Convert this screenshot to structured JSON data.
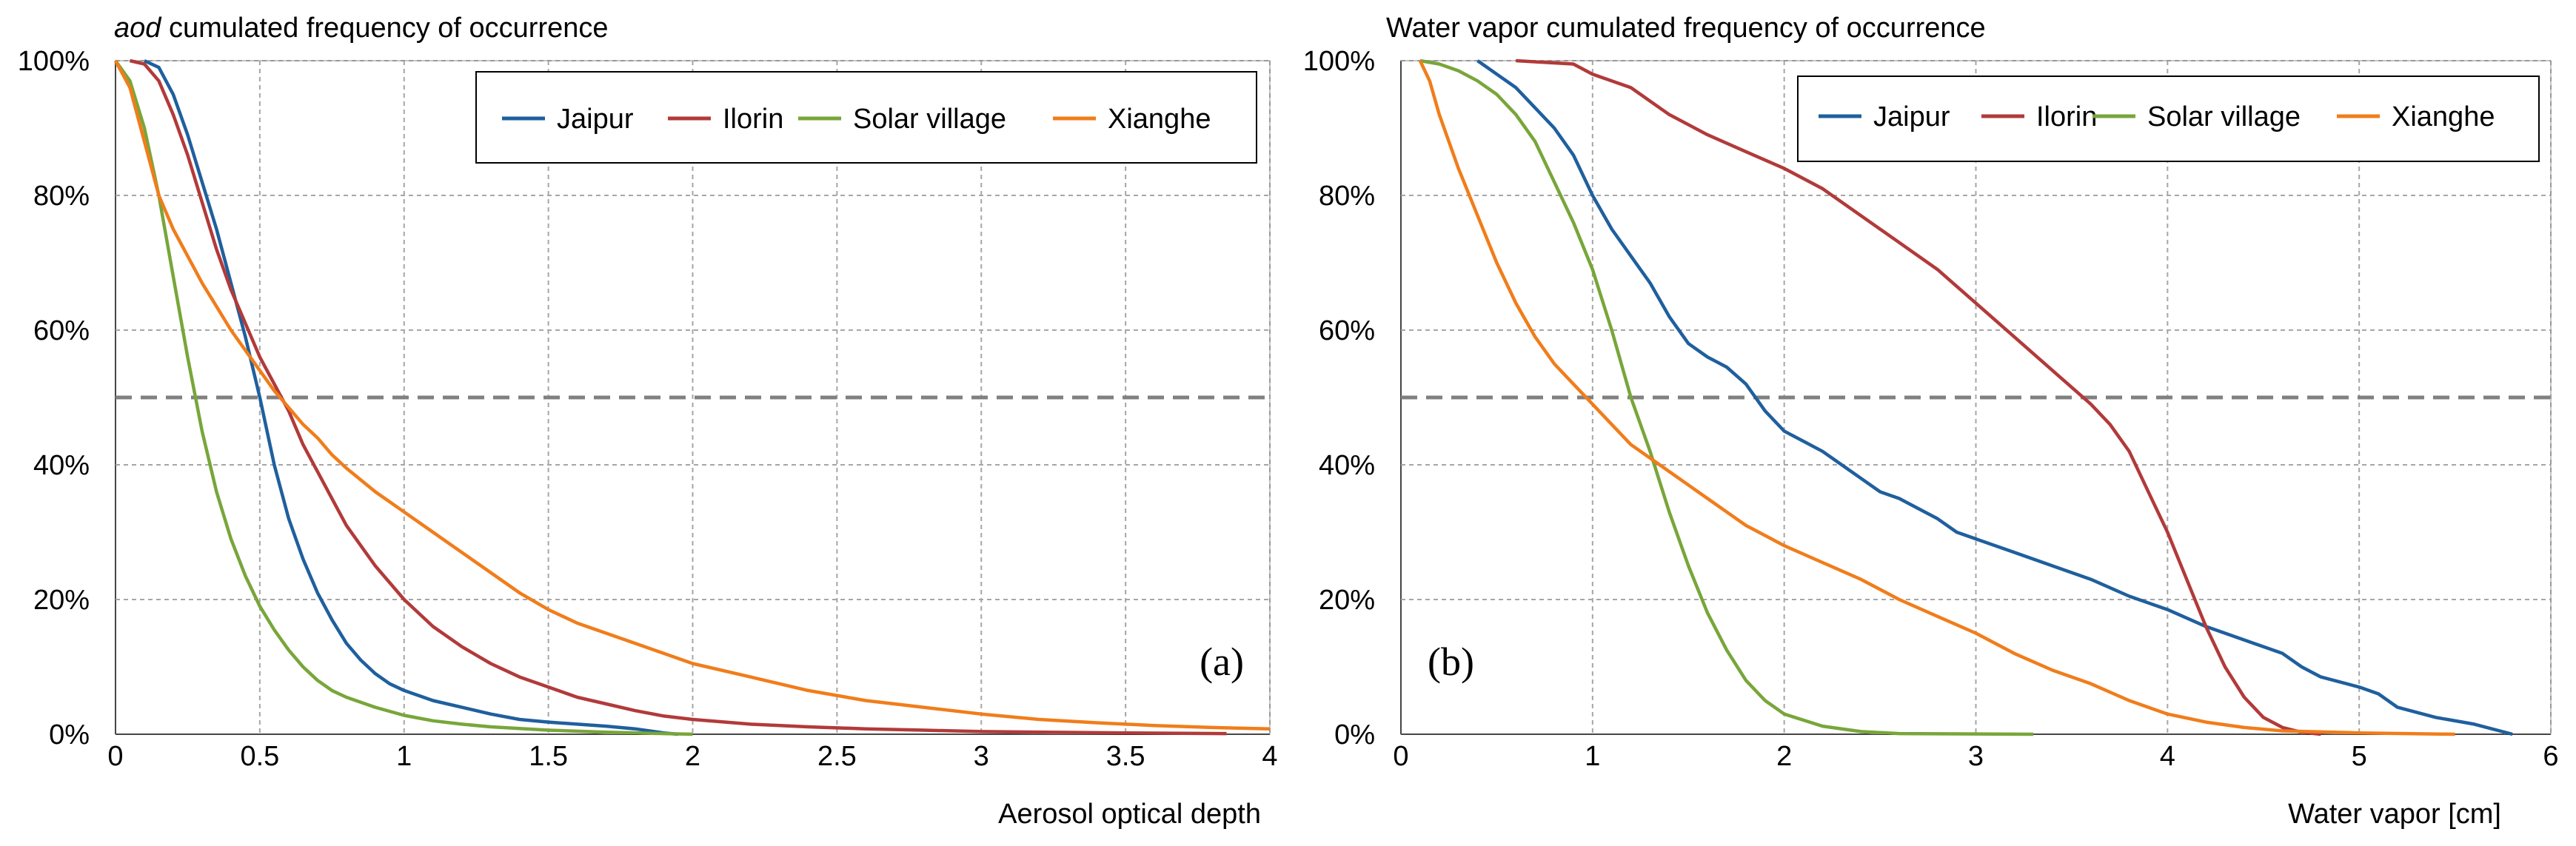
{
  "chart_data": [
    {
      "type": "line",
      "title_italic": "aod",
      "title_rest": " cumulated frequency of occurrence",
      "xlabel": "Aerosol optical depth",
      "ylabel": "",
      "xlim": [
        0,
        4
      ],
      "ylim": [
        0,
        100
      ],
      "x_ticks": [
        0,
        0.5,
        1,
        1.5,
        2,
        2.5,
        3,
        3.5,
        4
      ],
      "x_tick_labels": [
        "0",
        "0.5",
        "1",
        "1.5",
        "2",
        "2.5",
        "3",
        "3.5",
        "4"
      ],
      "y_ticks": [
        0,
        20,
        40,
        60,
        80,
        100
      ],
      "y_tick_labels": [
        "0%",
        "20%",
        "40%",
        "60%",
        "80%",
        "100%"
      ],
      "grid": true,
      "reference_line_y": 50,
      "legend_position": "top-right",
      "panel_label": "(a)",
      "series": [
        {
          "name": "Jaipur",
          "color": "#1f5f9e",
          "points": [
            [
              0.1,
              100
            ],
            [
              0.15,
              99
            ],
            [
              0.2,
              95
            ],
            [
              0.25,
              89
            ],
            [
              0.3,
              82
            ],
            [
              0.35,
              75
            ],
            [
              0.4,
              67
            ],
            [
              0.45,
              59
            ],
            [
              0.5,
              50
            ],
            [
              0.55,
              40
            ],
            [
              0.6,
              32
            ],
            [
              0.65,
              26
            ],
            [
              0.7,
              21
            ],
            [
              0.75,
              17
            ],
            [
              0.8,
              13.5
            ],
            [
              0.85,
              11
            ],
            [
              0.9,
              9
            ],
            [
              0.95,
              7.5
            ],
            [
              1.0,
              6.5
            ],
            [
              1.1,
              5
            ],
            [
              1.2,
              4
            ],
            [
              1.3,
              3
            ],
            [
              1.4,
              2.2
            ],
            [
              1.5,
              1.8
            ],
            [
              1.6,
              1.5
            ],
            [
              1.7,
              1.2
            ],
            [
              1.8,
              0.8
            ],
            [
              1.9,
              0.2
            ],
            [
              1.95,
              0
            ]
          ]
        },
        {
          "name": "Ilorin",
          "color": "#b23a3a",
          "points": [
            [
              0.05,
              100
            ],
            [
              0.1,
              99.5
            ],
            [
              0.15,
              97
            ],
            [
              0.2,
              92
            ],
            [
              0.25,
              86
            ],
            [
              0.3,
              79
            ],
            [
              0.35,
              72
            ],
            [
              0.4,
              66
            ],
            [
              0.45,
              61
            ],
            [
              0.5,
              56
            ],
            [
              0.55,
              52
            ],
            [
              0.6,
              48
            ],
            [
              0.65,
              43
            ],
            [
              0.7,
              39
            ],
            [
              0.75,
              35
            ],
            [
              0.8,
              31
            ],
            [
              0.9,
              25
            ],
            [
              1.0,
              20
            ],
            [
              1.1,
              16
            ],
            [
              1.2,
              13
            ],
            [
              1.3,
              10.5
            ],
            [
              1.4,
              8.5
            ],
            [
              1.5,
              7
            ],
            [
              1.6,
              5.5
            ],
            [
              1.7,
              4.5
            ],
            [
              1.8,
              3.5
            ],
            [
              1.9,
              2.7
            ],
            [
              2.0,
              2.2
            ],
            [
              2.2,
              1.5
            ],
            [
              2.4,
              1.1
            ],
            [
              2.6,
              0.8
            ],
            [
              2.8,
              0.6
            ],
            [
              3.0,
              0.4
            ],
            [
              3.5,
              0.2
            ],
            [
              3.85,
              0.1
            ]
          ]
        },
        {
          "name": "Solar village",
          "color": "#78a63a",
          "points": [
            [
              0.0,
              100
            ],
            [
              0.05,
              97
            ],
            [
              0.1,
              90
            ],
            [
              0.15,
              80
            ],
            [
              0.2,
              68
            ],
            [
              0.25,
              56
            ],
            [
              0.3,
              45
            ],
            [
              0.35,
              36
            ],
            [
              0.4,
              29
            ],
            [
              0.45,
              23.5
            ],
            [
              0.5,
              19
            ],
            [
              0.55,
              15.5
            ],
            [
              0.6,
              12.5
            ],
            [
              0.65,
              10
            ],
            [
              0.7,
              8
            ],
            [
              0.75,
              6.5
            ],
            [
              0.8,
              5.5
            ],
            [
              0.9,
              4
            ],
            [
              1.0,
              2.8
            ],
            [
              1.1,
              2
            ],
            [
              1.2,
              1.5
            ],
            [
              1.3,
              1.1
            ],
            [
              1.5,
              0.6
            ],
            [
              1.7,
              0.3
            ],
            [
              1.9,
              0.1
            ],
            [
              2.0,
              0
            ]
          ]
        },
        {
          "name": "Xianghe",
          "color": "#f07d1b",
          "points": [
            [
              0.0,
              100
            ],
            [
              0.05,
              96
            ],
            [
              0.1,
              88
            ],
            [
              0.15,
              80
            ],
            [
              0.2,
              75
            ],
            [
              0.25,
              71
            ],
            [
              0.3,
              67
            ],
            [
              0.35,
              63.5
            ],
            [
              0.4,
              60
            ],
            [
              0.45,
              57
            ],
            [
              0.5,
              54
            ],
            [
              0.55,
              51
            ],
            [
              0.6,
              48.5
            ],
            [
              0.65,
              46
            ],
            [
              0.7,
              44
            ],
            [
              0.75,
              41.5
            ],
            [
              0.8,
              39.5
            ],
            [
              0.9,
              36
            ],
            [
              1.0,
              33
            ],
            [
              1.1,
              30
            ],
            [
              1.2,
              27
            ],
            [
              1.3,
              24
            ],
            [
              1.4,
              21
            ],
            [
              1.5,
              18.5
            ],
            [
              1.6,
              16.5
            ],
            [
              1.7,
              15
            ],
            [
              1.8,
              13.5
            ],
            [
              1.9,
              12
            ],
            [
              2.0,
              10.5
            ],
            [
              2.2,
              8.5
            ],
            [
              2.4,
              6.5
            ],
            [
              2.6,
              5
            ],
            [
              2.8,
              4
            ],
            [
              3.0,
              3
            ],
            [
              3.2,
              2.2
            ],
            [
              3.4,
              1.7
            ],
            [
              3.6,
              1.3
            ],
            [
              3.8,
              1
            ],
            [
              4.0,
              0.8
            ]
          ]
        }
      ]
    },
    {
      "type": "line",
      "title_italic": "",
      "title_rest": "Water vapor cumulated frequency of occurrence",
      "xlabel": "Water vapor [cm]",
      "ylabel": "",
      "xlim": [
        0,
        6
      ],
      "ylim": [
        0,
        100
      ],
      "x_ticks": [
        0,
        1,
        2,
        3,
        4,
        5,
        6
      ],
      "x_tick_labels": [
        "0",
        "1",
        "2",
        "3",
        "4",
        "5",
        "6"
      ],
      "y_ticks": [
        0,
        20,
        40,
        60,
        80,
        100
      ],
      "y_tick_labels": [
        "0%",
        "20%",
        "40%",
        "60%",
        "80%",
        "100%"
      ],
      "grid": true,
      "reference_line_y": 50,
      "legend_position": "top-right",
      "panel_label": "(b)",
      "series": [
        {
          "name": "Jaipur",
          "color": "#1f5f9e",
          "points": [
            [
              0.4,
              100
            ],
            [
              0.5,
              98
            ],
            [
              0.6,
              96
            ],
            [
              0.7,
              93
            ],
            [
              0.8,
              90
            ],
            [
              0.9,
              86
            ],
            [
              1.0,
              80
            ],
            [
              1.1,
              75
            ],
            [
              1.2,
              71
            ],
            [
              1.3,
              67
            ],
            [
              1.4,
              62
            ],
            [
              1.5,
              58
            ],
            [
              1.6,
              56
            ],
            [
              1.7,
              54.5
            ],
            [
              1.8,
              52
            ],
            [
              1.9,
              48
            ],
            [
              2.0,
              45
            ],
            [
              2.1,
              43.5
            ],
            [
              2.2,
              42
            ],
            [
              2.3,
              40
            ],
            [
              2.4,
              38
            ],
            [
              2.5,
              36
            ],
            [
              2.6,
              35
            ],
            [
              2.7,
              33.5
            ],
            [
              2.8,
              32
            ],
            [
              2.9,
              30
            ],
            [
              3.0,
              29
            ],
            [
              3.2,
              27
            ],
            [
              3.4,
              25
            ],
            [
              3.6,
              23
            ],
            [
              3.8,
              20.5
            ],
            [
              4.0,
              18.5
            ],
            [
              4.2,
              16
            ],
            [
              4.4,
              14
            ],
            [
              4.6,
              12
            ],
            [
              4.7,
              10
            ],
            [
              4.8,
              8.5
            ],
            [
              5.0,
              7
            ],
            [
              5.1,
              6
            ],
            [
              5.2,
              4
            ],
            [
              5.4,
              2.5
            ],
            [
              5.6,
              1.5
            ],
            [
              5.8,
              0
            ]
          ]
        },
        {
          "name": "Ilorin",
          "color": "#b23a3a",
          "points": [
            [
              0.6,
              100
            ],
            [
              0.9,
              99.5
            ],
            [
              1.0,
              98
            ],
            [
              1.2,
              96
            ],
            [
              1.4,
              92
            ],
            [
              1.6,
              89
            ],
            [
              1.8,
              86.5
            ],
            [
              2.0,
              84
            ],
            [
              2.2,
              81
            ],
            [
              2.4,
              77
            ],
            [
              2.6,
              73
            ],
            [
              2.8,
              69
            ],
            [
              3.0,
              64
            ],
            [
              3.2,
              59
            ],
            [
              3.4,
              54
            ],
            [
              3.6,
              49
            ],
            [
              3.7,
              46
            ],
            [
              3.8,
              42
            ],
            [
              3.9,
              36
            ],
            [
              4.0,
              30
            ],
            [
              4.1,
              23
            ],
            [
              4.2,
              16
            ],
            [
              4.3,
              10
            ],
            [
              4.4,
              5.5
            ],
            [
              4.5,
              2.5
            ],
            [
              4.6,
              1
            ],
            [
              4.7,
              0.3
            ],
            [
              4.8,
              0
            ]
          ]
        },
        {
          "name": "Solar village",
          "color": "#78a63a",
          "points": [
            [
              0.1,
              100
            ],
            [
              0.2,
              99.5
            ],
            [
              0.3,
              98.5
            ],
            [
              0.4,
              97
            ],
            [
              0.5,
              95
            ],
            [
              0.6,
              92
            ],
            [
              0.7,
              88
            ],
            [
              0.8,
              82
            ],
            [
              0.9,
              76
            ],
            [
              1.0,
              69
            ],
            [
              1.1,
              60
            ],
            [
              1.2,
              50
            ],
            [
              1.3,
              42
            ],
            [
              1.4,
              33
            ],
            [
              1.5,
              25
            ],
            [
              1.6,
              18
            ],
            [
              1.7,
              12.5
            ],
            [
              1.8,
              8
            ],
            [
              1.9,
              5
            ],
            [
              2.0,
              3
            ],
            [
              2.2,
              1.2
            ],
            [
              2.4,
              0.4
            ],
            [
              2.6,
              0.1
            ],
            [
              3.3,
              0
            ]
          ]
        },
        {
          "name": "Xianghe",
          "color": "#f07d1b",
          "points": [
            [
              0.1,
              100
            ],
            [
              0.15,
              97
            ],
            [
              0.2,
              92
            ],
            [
              0.3,
              84
            ],
            [
              0.4,
              77
            ],
            [
              0.5,
              70
            ],
            [
              0.6,
              64
            ],
            [
              0.7,
              59
            ],
            [
              0.8,
              55
            ],
            [
              0.9,
              52
            ],
            [
              1.0,
              49
            ],
            [
              1.1,
              46
            ],
            [
              1.2,
              43
            ],
            [
              1.3,
              41
            ],
            [
              1.4,
              39
            ],
            [
              1.5,
              37
            ],
            [
              1.6,
              35
            ],
            [
              1.7,
              33
            ],
            [
              1.8,
              31
            ],
            [
              1.9,
              29.5
            ],
            [
              2.0,
              28
            ],
            [
              2.2,
              25.5
            ],
            [
              2.4,
              23
            ],
            [
              2.6,
              20
            ],
            [
              2.8,
              17.5
            ],
            [
              3.0,
              15
            ],
            [
              3.2,
              12
            ],
            [
              3.4,
              9.5
            ],
            [
              3.6,
              7.5
            ],
            [
              3.8,
              5
            ],
            [
              4.0,
              3
            ],
            [
              4.2,
              1.8
            ],
            [
              4.4,
              1
            ],
            [
              4.6,
              0.5
            ],
            [
              5.0,
              0.2
            ],
            [
              5.5,
              0
            ]
          ]
        }
      ]
    }
  ]
}
